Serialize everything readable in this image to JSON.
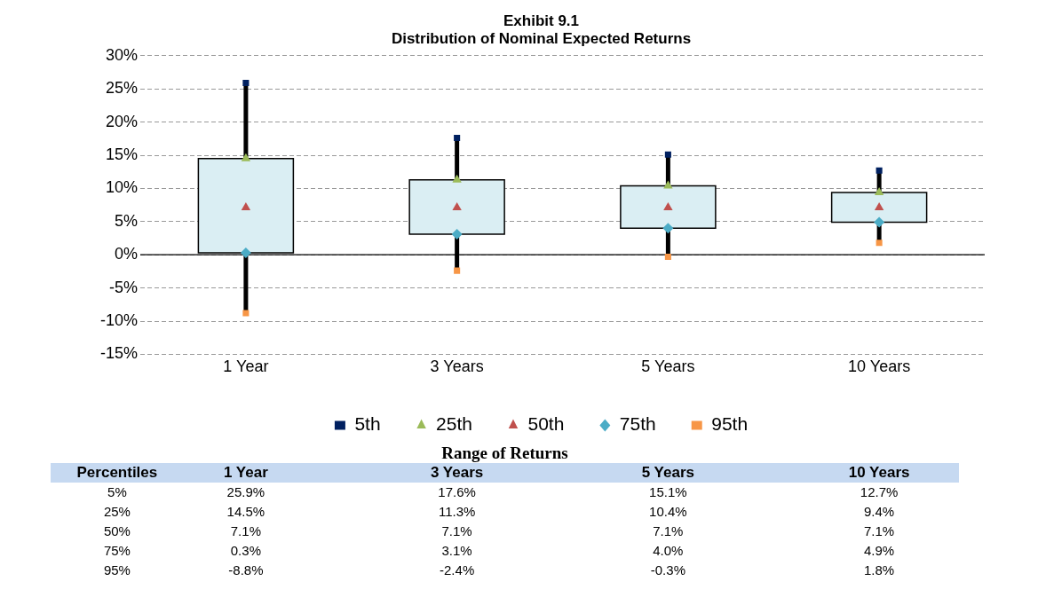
{
  "chart_data": {
    "type": "box",
    "title": "Exhibit 9.1",
    "subtitle": "Distribution of Nominal Expected Returns",
    "categories": [
      "1 Year",
      "3 Years",
      "5 Years",
      "10 Years"
    ],
    "boxes": [
      {
        "low": -8.8,
        "q1": 0.3,
        "q3": 14.5,
        "high": 25.9
      },
      {
        "low": -2.4,
        "q1": 3.1,
        "q3": 11.3,
        "high": 17.6
      },
      {
        "low": -0.3,
        "q1": 4.0,
        "q3": 10.4,
        "high": 15.1
      },
      {
        "low": 1.8,
        "q1": 4.9,
        "q3": 9.4,
        "high": 12.7
      }
    ],
    "series": [
      {
        "type": "scatter",
        "name": "5th",
        "color": "#002060",
        "marker": "square",
        "x": [
          "1 Year",
          "3 Years",
          "5 Years",
          "10 Years"
        ],
        "values": [
          25.9,
          17.6,
          15.1,
          12.7
        ],
        "value_labels": [
          "25.9%",
          "17.6%",
          "15.1%",
          "12.7%"
        ]
      },
      {
        "type": "scatter",
        "name": "25th",
        "color": "#9bbb59",
        "marker": "triangle",
        "x": [
          "1 Year",
          "3 Years",
          "5 Years",
          "10 Years"
        ],
        "values": [
          14.5,
          11.3,
          10.4,
          9.4
        ],
        "value_labels": [
          "14.5%",
          "11.3%",
          "10.4%",
          "9.4%"
        ]
      },
      {
        "type": "scatter",
        "name": "50th",
        "color": "#c0504d",
        "marker": "triangle",
        "x": [
          "1 Year",
          "3 Years",
          "5 Years",
          "10 Years"
        ],
        "values": [
          7.1,
          7.1,
          7.1,
          7.1
        ],
        "value_labels": [
          "7.1%",
          "7.1%",
          "7.1%",
          "7.1%"
        ]
      },
      {
        "type": "scatter",
        "name": "75th",
        "color": "#4bacc6",
        "marker": "diamond",
        "x": [
          "1 Year",
          "3 Years",
          "5 Years",
          "10 Years"
        ],
        "values": [
          0.3,
          3.1,
          4.0,
          4.9
        ],
        "value_labels": [
          "0.3%",
          "3.1%",
          "4.0%",
          "4.9%"
        ]
      },
      {
        "type": "scatter",
        "name": "95th",
        "color": "#f79646",
        "marker": "square",
        "x": [
          "1 Year",
          "3 Years",
          "5 Years",
          "10 Years"
        ],
        "values": [
          -8.8,
          -2.4,
          -0.3,
          1.8
        ],
        "value_labels": [
          "-8.8%",
          "-2.4%",
          "-0.3%",
          "1.8%"
        ]
      }
    ],
    "ylim": [
      -15,
      30
    ],
    "yticks": [
      {
        "value": -15,
        "label": "-15%"
      },
      {
        "value": -10,
        "label": "-10%"
      },
      {
        "value": -5,
        "label": "-5%"
      },
      {
        "value": 0,
        "label": "0%"
      },
      {
        "value": 5,
        "label": "5%"
      },
      {
        "value": 10,
        "label": "10%"
      },
      {
        "value": 15,
        "label": "15%"
      },
      {
        "value": 20,
        "label": "20%"
      },
      {
        "value": 25,
        "label": "25%"
      },
      {
        "value": 30,
        "label": "30%"
      }
    ],
    "grid": "y",
    "legend": "bottom",
    "annotations": [
      "Range of Returns",
      "Percentiles",
      "5%",
      "25%",
      "50%",
      "75%",
      "95%"
    ]
  }
}
